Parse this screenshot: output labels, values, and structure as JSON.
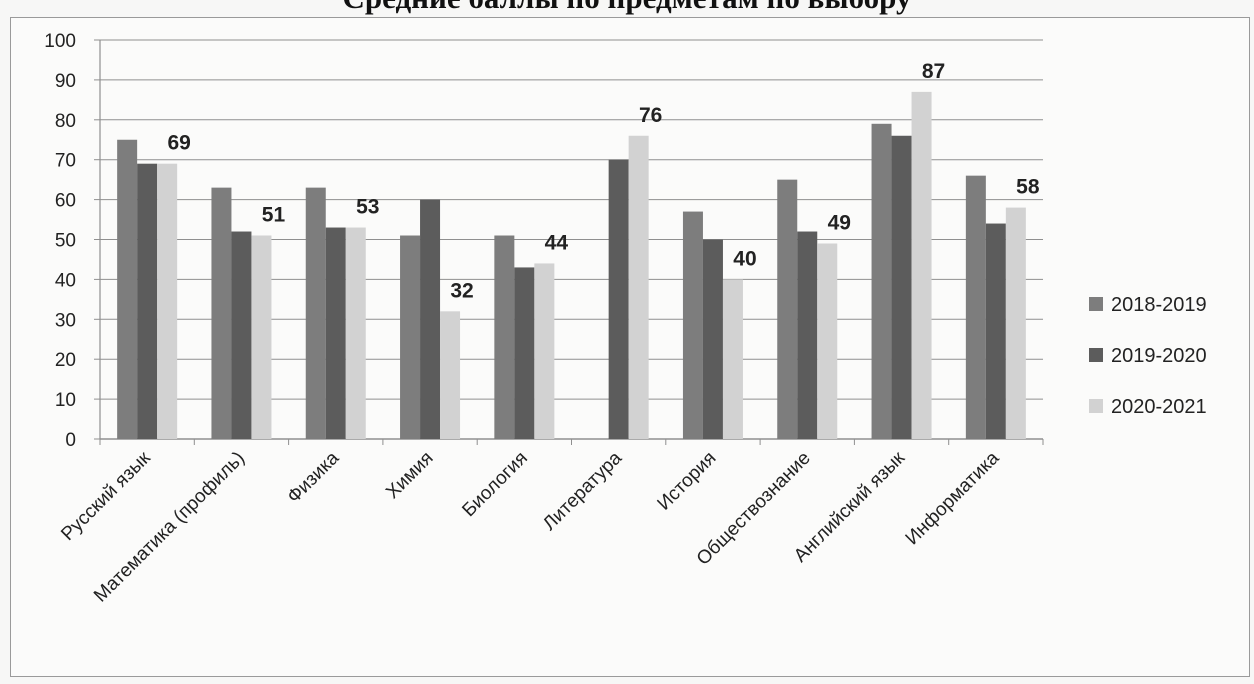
{
  "chart_data": {
    "type": "bar",
    "title": "Средние баллы по предметам по выбору",
    "xlabel": "",
    "ylabel": "",
    "ylim": [
      0,
      100
    ],
    "yticks": [
      0,
      10,
      20,
      30,
      40,
      50,
      60,
      70,
      80,
      90,
      100
    ],
    "grid": true,
    "legend_position": "right",
    "categories": [
      "Русский язык",
      "Математика (профиль)",
      "Физика",
      "Химия",
      "Биология",
      "Литература",
      "История",
      "Обществознание",
      "Английский язык",
      "Информатика"
    ],
    "series": [
      {
        "name": "2018-2019",
        "color": "#7d7d7d",
        "values": [
          75,
          63,
          63,
          51,
          51,
          null,
          57,
          65,
          79,
          66
        ]
      },
      {
        "name": "2019-2020",
        "color": "#5c5c5c",
        "values": [
          69,
          52,
          53,
          60,
          43,
          70,
          50,
          52,
          76,
          54
        ]
      },
      {
        "name": "2020-2021",
        "color": "#d2d2d2",
        "values": [
          69,
          51,
          53,
          32,
          44,
          76,
          40,
          49,
          87,
          58
        ]
      }
    ],
    "data_labels": {
      "series": "2020-2021",
      "values": [
        "69",
        "51",
        "53",
        "32",
        "44",
        "76",
        "40",
        "49",
        "87",
        "58"
      ]
    }
  }
}
